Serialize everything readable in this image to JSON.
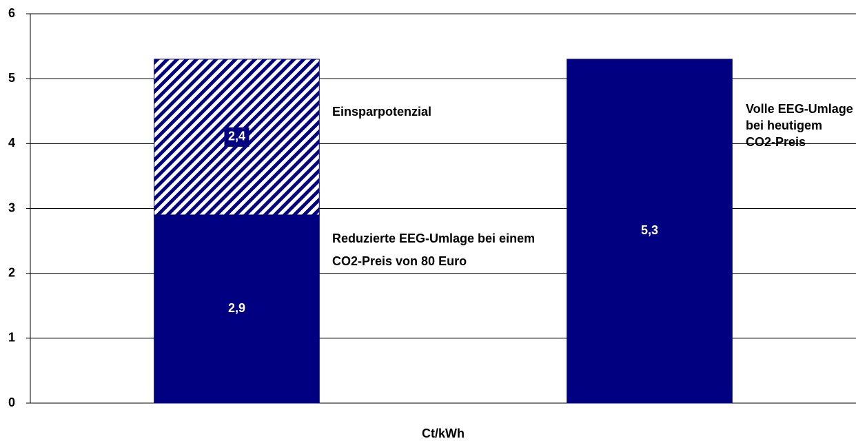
{
  "chart_data": {
    "type": "bar",
    "stacked": true,
    "categories": [
      null,
      null
    ],
    "series": [
      {
        "name": "Reduzierte EEG-Umlage bei einem CO2-Preis von 80 Euro",
        "color": "#000080",
        "values": [
          2.9,
          null
        ],
        "value_labels": [
          "2,9",
          null
        ]
      },
      {
        "name": "Einsparpotenzial",
        "color": "#000080",
        "hatch": true,
        "values": [
          2.4,
          null
        ],
        "value_labels": [
          "2,4",
          null
        ]
      },
      {
        "name": "Volle EEG-Umlage bei heutigem CO2-Preis",
        "color": "#000080",
        "values": [
          null,
          5.3
        ],
        "value_labels": [
          null,
          "5,3"
        ]
      }
    ],
    "x_label": "Ct/kWh",
    "ylim": [
      0,
      6
    ],
    "yticks": [
      0,
      1,
      2,
      3,
      4,
      5,
      6
    ],
    "grid": true
  }
}
